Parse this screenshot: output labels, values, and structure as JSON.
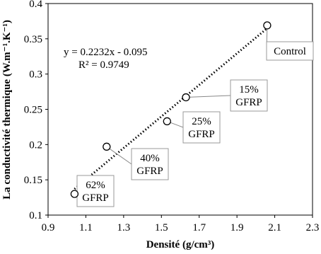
{
  "chart_data": {
    "type": "scatter",
    "x_label": "Densité (g/cm³)",
    "y_label": "La conductivité thermique (W.m⁻¹.K⁻¹)",
    "x": [
      1.04,
      1.21,
      1.53,
      1.63,
      2.06
    ],
    "values": [
      0.13,
      0.197,
      0.233,
      0.267,
      0.369
    ],
    "point_labels": [
      [
        "62%",
        "GFRP"
      ],
      [
        "40%",
        "GFRP"
      ],
      [
        "25%",
        "GFRP"
      ],
      [
        "15%",
        "GFRP"
      ],
      [
        "Control"
      ]
    ],
    "trendline": {
      "x": [
        1.04,
        2.06
      ],
      "y": [
        0.137,
        0.365
      ]
    },
    "equation": [
      "y = 0.2232x - 0.095",
      "R² = 0.9749"
    ],
    "xlim": [
      0.9,
      2.3
    ],
    "xticks": [
      0.9,
      1.1,
      1.3,
      1.5,
      1.7,
      1.9,
      2.1,
      2.3
    ],
    "ylim": [
      0.1,
      0.4
    ],
    "yticks": [
      0.1,
      0.15,
      0.2,
      0.25,
      0.3,
      0.35,
      0.4
    ],
    "grid": false,
    "color": "#000000"
  }
}
